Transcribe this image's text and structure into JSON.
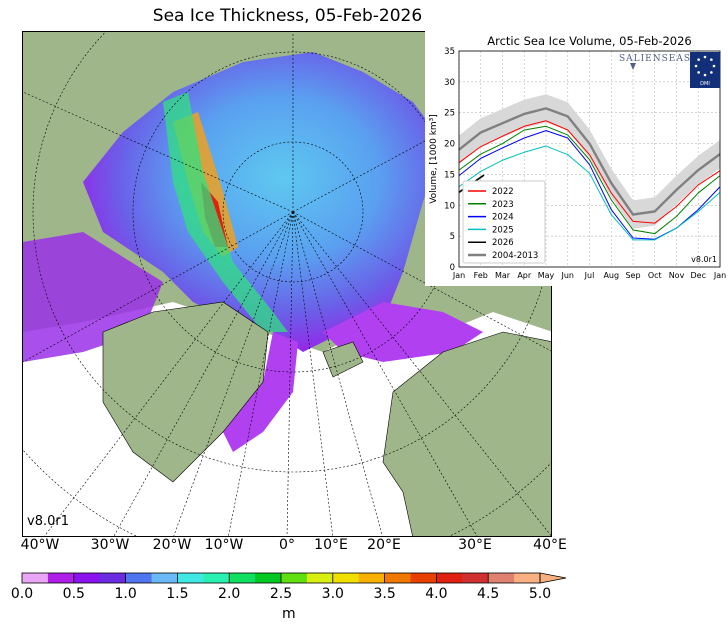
{
  "title": "Sea Ice Thickness, 05-Feb-2026",
  "map": {
    "version_label": "v8.0r1",
    "longitude_labels": [
      "40°W",
      "30°W",
      "20°W",
      "10°W",
      "0°",
      "10°E",
      "20°E",
      "30°E",
      "40°E"
    ],
    "colors": {
      "land": "#9fb68a",
      "ocean": "#ffffff",
      "lakes": "#a8c4ee"
    }
  },
  "colorbar": {
    "ticks": [
      "0.0",
      "0.5",
      "1.0",
      "1.5",
      "2.0",
      "2.5",
      "3.0",
      "3.5",
      "4.0",
      "4.5",
      "5.0"
    ],
    "unit": "m",
    "extend": "max",
    "colors": [
      "#e9a6f4",
      "#b01fe8",
      "#8a13f0",
      "#6b2be0",
      "#4f74f0",
      "#6ab8f6",
      "#40e8e4",
      "#28f0b0",
      "#10e060",
      "#00c820",
      "#60e010",
      "#d8f010",
      "#f0e000",
      "#f8b000",
      "#f07800",
      "#e84000",
      "#e02010",
      "#d03030",
      "#e08070",
      "#f8b080"
    ]
  },
  "chart_data": {
    "type": "line",
    "title": "Arctic Sea Ice Volume, 05-Feb-2026",
    "ylabel": "Volume, [1000 km³]",
    "xlabel": "",
    "ylim": [
      0,
      35
    ],
    "yticks": [
      "0",
      "5",
      "10",
      "15",
      "20",
      "25",
      "30",
      "35"
    ],
    "xticks": [
      "Jan",
      "Feb",
      "Mar",
      "Apr",
      "May",
      "Jun",
      "Jul",
      "Aug",
      "Sep",
      "Oct",
      "Nov",
      "Dec",
      "Jan"
    ],
    "grid": true,
    "legend_position": "lower-left",
    "version_label": "v8.0r1",
    "logos": [
      "SALIENSEAS",
      "DMI"
    ],
    "series": [
      {
        "name": "2022",
        "color": "#ff0000",
        "x": [
          "Jan",
          "Feb",
          "Mar",
          "Apr",
          "May",
          "Jun",
          "Jul",
          "Aug",
          "Sep",
          "Oct",
          "Nov",
          "Dec",
          "Jan"
        ],
        "values": [
          16.9,
          19.5,
          21.2,
          22.8,
          23.7,
          22.2,
          18.2,
          12.0,
          7.4,
          7.1,
          9.8,
          13.3,
          15.6
        ]
      },
      {
        "name": "2023",
        "color": "#008000",
        "x": [
          "Jan",
          "Feb",
          "Mar",
          "Apr",
          "May",
          "Jun",
          "Jul",
          "Aug",
          "Sep",
          "Oct",
          "Nov",
          "Dec",
          "Jan"
        ],
        "values": [
          15.7,
          18.3,
          20.0,
          22.2,
          22.8,
          21.4,
          17.4,
          10.9,
          6.0,
          5.4,
          8.2,
          12.0,
          14.8
        ]
      },
      {
        "name": "2024",
        "color": "#0000ff",
        "x": [
          "Jan",
          "Feb",
          "Mar",
          "Apr",
          "May",
          "Jun",
          "Jul",
          "Aug",
          "Sep",
          "Oct",
          "Nov",
          "Dec",
          "Jan"
        ],
        "values": [
          14.8,
          17.6,
          19.3,
          20.9,
          22.1,
          20.9,
          16.6,
          9.3,
          4.7,
          4.5,
          6.3,
          9.3,
          13.0
        ]
      },
      {
        "name": "2025",
        "color": "#00bfbf",
        "x": [
          "Jan",
          "Feb",
          "Mar",
          "Apr",
          "May",
          "Jun",
          "Jul",
          "Aug",
          "Sep",
          "Oct",
          "Nov",
          "Dec",
          "Jan"
        ],
        "values": [
          13.0,
          15.5,
          17.3,
          18.6,
          19.6,
          18.2,
          15.2,
          8.5,
          4.4,
          4.4,
          6.3,
          9.0,
          12.1
        ]
      },
      {
        "name": "2026",
        "color": "#000000",
        "x": [
          "01-Jan",
          "05-Feb"
        ],
        "values": [
          12.1,
          14.9
        ]
      },
      {
        "name": "2004-2013",
        "color": "#808080",
        "x": [
          "Jan",
          "Feb",
          "Mar",
          "Apr",
          "May",
          "Jun",
          "Jul",
          "Aug",
          "Sep",
          "Oct",
          "Nov",
          "Dec",
          "Jan"
        ],
        "values": [
          19.0,
          21.8,
          23.3,
          24.8,
          25.7,
          24.4,
          20.0,
          13.6,
          8.5,
          9.0,
          12.5,
          15.7,
          18.3
        ],
        "band_halfwidth": 2.3
      }
    ]
  }
}
